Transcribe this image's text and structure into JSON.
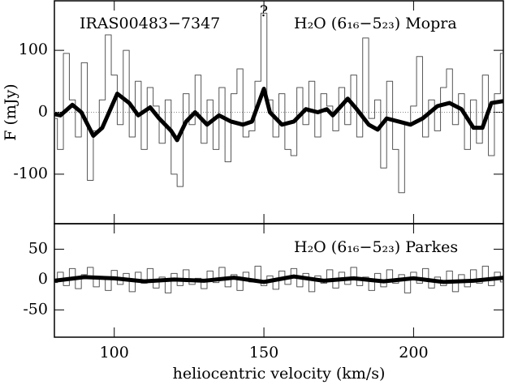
{
  "chart_data": [
    {
      "type": "line",
      "annotations": [
        "IRAS00483−7347",
        "H₂O (6₁₆−5₂₃) Mopra",
        "?"
      ],
      "ylabel": "F (mJy)",
      "xlim": [
        80,
        230
      ],
      "xticks": [
        100,
        150,
        200
      ],
      "ylim": [
        -180,
        180
      ],
      "yticks": [
        -100,
        0,
        100
      ],
      "x": [
        80,
        82,
        84,
        86,
        88,
        90,
        92,
        94,
        96,
        98,
        100,
        102,
        104,
        106,
        108,
        110,
        112,
        114,
        116,
        118,
        120,
        122,
        124,
        126,
        128,
        130,
        132,
        134,
        136,
        138,
        140,
        142,
        144,
        146,
        148,
        150,
        152,
        154,
        156,
        158,
        160,
        162,
        164,
        166,
        168,
        170,
        172,
        174,
        176,
        178,
        180,
        182,
        184,
        186,
        188,
        190,
        192,
        194,
        196,
        198,
        200,
        202,
        204,
        206,
        208,
        210,
        212,
        214,
        216,
        218,
        220,
        222,
        224,
        226,
        228,
        230
      ],
      "series": [
        {
          "name": "channels",
          "color": "#555555",
          "values": [
            -10,
            -60,
            95,
            20,
            -40,
            80,
            -110,
            -30,
            20,
            125,
            60,
            -20,
            100,
            -40,
            50,
            -60,
            40,
            10,
            -50,
            20,
            -100,
            -120,
            30,
            -20,
            60,
            -50,
            20,
            -60,
            40,
            -80,
            30,
            70,
            -40,
            -30,
            50,
            160,
            20,
            -40,
            30,
            -60,
            -70,
            40,
            -20,
            50,
            -40,
            30,
            10,
            -30,
            40,
            -20,
            60,
            -40,
            120,
            -10,
            20,
            -90,
            50,
            -60,
            -130,
            -20,
            10,
            90,
            -40,
            20,
            -30,
            40,
            70,
            -20,
            30,
            -60,
            20,
            -50,
            60,
            -70,
            30,
            95
          ]
        },
        {
          "name": "smoothed",
          "color": "#000000",
          "x": [
            80,
            82,
            86,
            89,
            93,
            96,
            101,
            105,
            108,
            112,
            115,
            119,
            121,
            124,
            127,
            131,
            135,
            139,
            143,
            146,
            150,
            152,
            156,
            160,
            164,
            168,
            171,
            173,
            178,
            181,
            185,
            188,
            191,
            195,
            199,
            203,
            208,
            212,
            216,
            220,
            223,
            226,
            230
          ],
          "values": [
            -3,
            -5,
            12,
            0,
            -38,
            -25,
            30,
            15,
            -5,
            8,
            -10,
            -30,
            -45,
            -15,
            0,
            -20,
            -5,
            -15,
            -20,
            -15,
            38,
            0,
            -20,
            -15,
            5,
            0,
            5,
            -5,
            22,
            5,
            -20,
            -28,
            -10,
            -15,
            -20,
            -10,
            10,
            15,
            5,
            -25,
            -25,
            15,
            18
          ]
        }
      ]
    },
    {
      "type": "line",
      "annotations": [
        "H₂O (6₁₆−5₂₃) Parkes"
      ],
      "xlabel": "heliocentric velocity (km/s)",
      "xlim": [
        80,
        230
      ],
      "xticks": [
        100,
        150,
        200
      ],
      "ylim": [
        -95,
        92
      ],
      "yticks": [
        -50,
        0,
        50
      ],
      "x": [
        80,
        82,
        84,
        86,
        88,
        90,
        92,
        94,
        96,
        98,
        100,
        102,
        104,
        106,
        108,
        110,
        112,
        114,
        116,
        118,
        120,
        122,
        124,
        126,
        128,
        130,
        132,
        134,
        136,
        138,
        140,
        142,
        144,
        146,
        148,
        150,
        152,
        154,
        156,
        158,
        160,
        162,
        164,
        166,
        168,
        170,
        172,
        174,
        176,
        178,
        180,
        182,
        184,
        186,
        188,
        190,
        192,
        194,
        196,
        198,
        200,
        202,
        204,
        206,
        208,
        210,
        212,
        214,
        216,
        218,
        220,
        222,
        224,
        226,
        228,
        230
      ],
      "series": [
        {
          "name": "channels",
          "color": "#555555",
          "values": [
            -5,
            12,
            -10,
            18,
            -15,
            8,
            20,
            -12,
            5,
            -18,
            15,
            -8,
            10,
            -20,
            12,
            -6,
            18,
            -14,
            4,
            -22,
            10,
            -10,
            16,
            -8,
            2,
            -15,
            14,
            -5,
            20,
            -12,
            8,
            -18,
            12,
            -4,
            22,
            -10,
            6,
            -16,
            14,
            -8,
            18,
            -12,
            10,
            -20,
            6,
            -6,
            16,
            -14,
            12,
            -8,
            20,
            -10,
            4,
            -18,
            10,
            -12,
            16,
            -6,
            8,
            -22,
            12,
            -6,
            18,
            -14,
            4,
            -10,
            14,
            -20,
            8,
            -12,
            16,
            -6,
            22,
            -10,
            12,
            -4
          ]
        },
        {
          "name": "smoothed",
          "color": "#000000",
          "x": [
            80,
            90,
            100,
            110,
            120,
            130,
            140,
            150,
            160,
            170,
            180,
            190,
            200,
            210,
            220,
            230
          ],
          "values": [
            -2,
            4,
            2,
            -3,
            0,
            -2,
            3,
            -4,
            5,
            -2,
            2,
            -3,
            2,
            -4,
            -2,
            3
          ]
        }
      ]
    }
  ]
}
